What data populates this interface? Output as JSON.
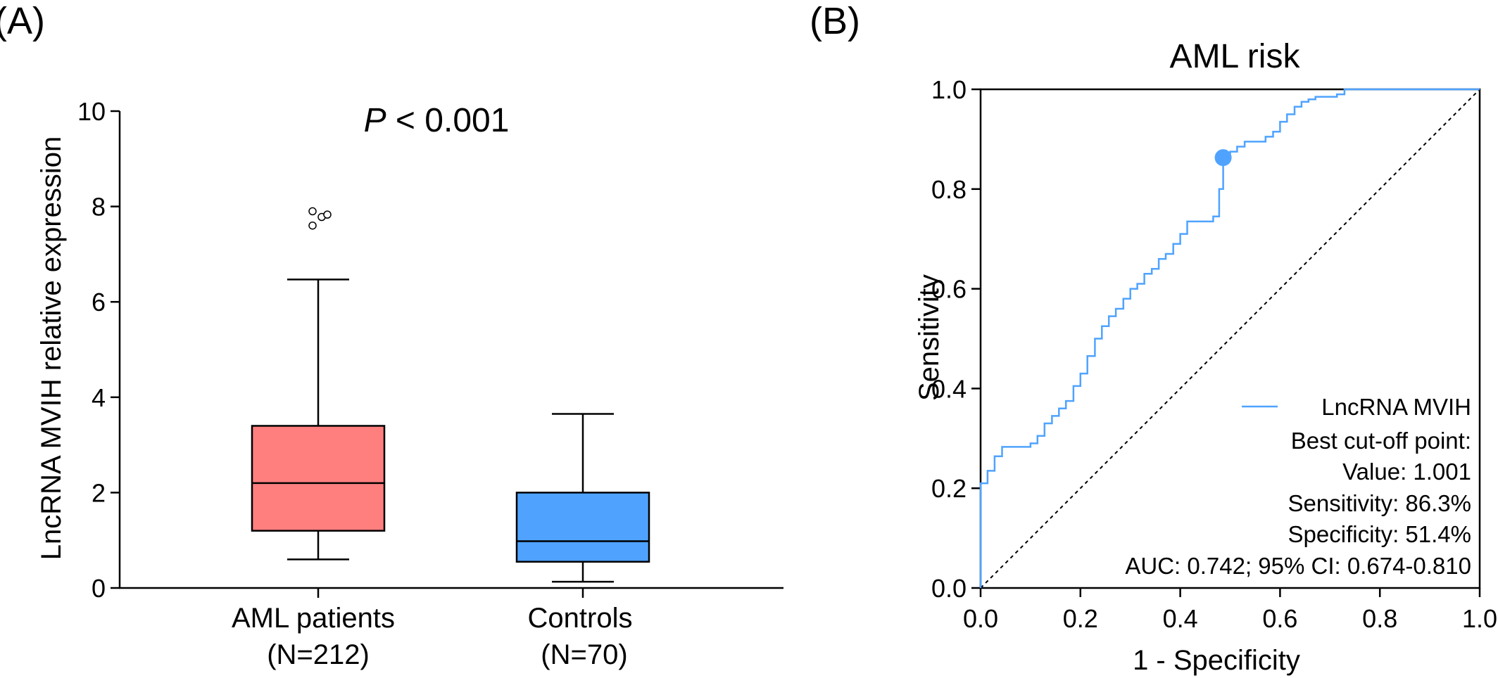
{
  "chart_data": [
    {
      "panel_label": "(A)",
      "type": "box",
      "title": "",
      "annotation": {
        "italic": "P",
        "rest": " < 0.001"
      },
      "ylabel": "LncRNA MVIH relative expression",
      "xlabel": "",
      "ylim": [
        0,
        10
      ],
      "yticks": [
        "0",
        "2",
        "4",
        "6",
        "8",
        "10"
      ],
      "grid": false,
      "boxes": [
        {
          "category": "AML patients",
          "n_label": "(N=212)",
          "color": "#FF7F7F",
          "whisker_low": 0.6,
          "q1": 1.2,
          "median": 2.2,
          "q3": 3.4,
          "whisker_high": 6.47,
          "outliers": [
            7.9,
            7.6,
            7.78,
            7.83
          ]
        },
        {
          "category": "Controls",
          "n_label": "(N=70)",
          "color": "#4FA3FF",
          "whisker_low": 0.13,
          "q1": 0.55,
          "median": 0.98,
          "q3": 2.0,
          "whisker_high": 3.65,
          "outliers": []
        }
      ]
    },
    {
      "panel_label": "(B)",
      "type": "line",
      "title": "AML risk",
      "xlabel": "1 - Specificity",
      "ylabel": "Sensitivity",
      "xlim": [
        0,
        1
      ],
      "ylim": [
        0,
        1
      ],
      "xticks": [
        "0.0",
        "0.2",
        "0.4",
        "0.6",
        "0.8",
        "1.0"
      ],
      "yticks": [
        "0.0",
        "0.2",
        "0.4",
        "0.6",
        "0.8",
        "1.0"
      ],
      "grid": false,
      "series": [
        {
          "name": "LncRNA MVIH",
          "color": "#4FA3FF",
          "x": [
            0,
            0,
            0.014,
            0.014,
            0.028,
            0.028,
            0.043,
            0.043,
            0.1,
            0.1,
            0.114,
            0.114,
            0.128,
            0.128,
            0.143,
            0.143,
            0.157,
            0.157,
            0.171,
            0.171,
            0.186,
            0.186,
            0.2,
            0.2,
            0.214,
            0.214,
            0.229,
            0.229,
            0.243,
            0.243,
            0.257,
            0.257,
            0.271,
            0.271,
            0.286,
            0.286,
            0.3,
            0.3,
            0.314,
            0.314,
            0.328,
            0.328,
            0.343,
            0.343,
            0.357,
            0.357,
            0.371,
            0.371,
            0.386,
            0.386,
            0.4,
            0.4,
            0.414,
            0.414,
            0.466,
            0.466,
            0.478,
            0.478,
            0.486,
            0.486,
            0.5,
            0.5,
            0.514,
            0.514,
            0.529,
            0.529,
            0.571,
            0.571,
            0.586,
            0.586,
            0.6,
            0.6,
            0.614,
            0.614,
            0.629,
            0.629,
            0.643,
            0.643,
            0.657,
            0.657,
            0.671,
            0.671,
            0.714,
            0.714,
            0.729,
            0.729,
            1.0
          ],
          "y": [
            0,
            0.21,
            0.21,
            0.235,
            0.235,
            0.264,
            0.264,
            0.283,
            0.283,
            0.29,
            0.29,
            0.305,
            0.305,
            0.33,
            0.33,
            0.345,
            0.345,
            0.36,
            0.36,
            0.375,
            0.375,
            0.405,
            0.405,
            0.43,
            0.43,
            0.465,
            0.465,
            0.5,
            0.5,
            0.525,
            0.525,
            0.545,
            0.545,
            0.56,
            0.56,
            0.58,
            0.58,
            0.6,
            0.6,
            0.61,
            0.61,
            0.63,
            0.63,
            0.64,
            0.64,
            0.66,
            0.66,
            0.67,
            0.67,
            0.69,
            0.69,
            0.71,
            0.71,
            0.735,
            0.735,
            0.745,
            0.745,
            0.8,
            0.8,
            0.863,
            0.863,
            0.875,
            0.875,
            0.885,
            0.885,
            0.895,
            0.895,
            0.905,
            0.905,
            0.915,
            0.915,
            0.935,
            0.935,
            0.95,
            0.95,
            0.965,
            0.965,
            0.975,
            0.975,
            0.98,
            0.98,
            0.985,
            0.985,
            0.99,
            0.99,
            1.0,
            1.0
          ]
        }
      ],
      "reference_line": {
        "x": [
          0,
          1
        ],
        "y": [
          0,
          1
        ],
        "style": "dashed"
      },
      "cutoff_point": {
        "x": 0.486,
        "y": 0.863,
        "color": "#4FA3FF"
      },
      "legend_position": "bottom-right",
      "annotations": [
        "Best cut-off point:",
        "Value: 1.001",
        "Sensitivity: 86.3%",
        "Specificity: 51.4%",
        "AUC: 0.742; 95% CI: 0.674-0.810"
      ]
    }
  ]
}
